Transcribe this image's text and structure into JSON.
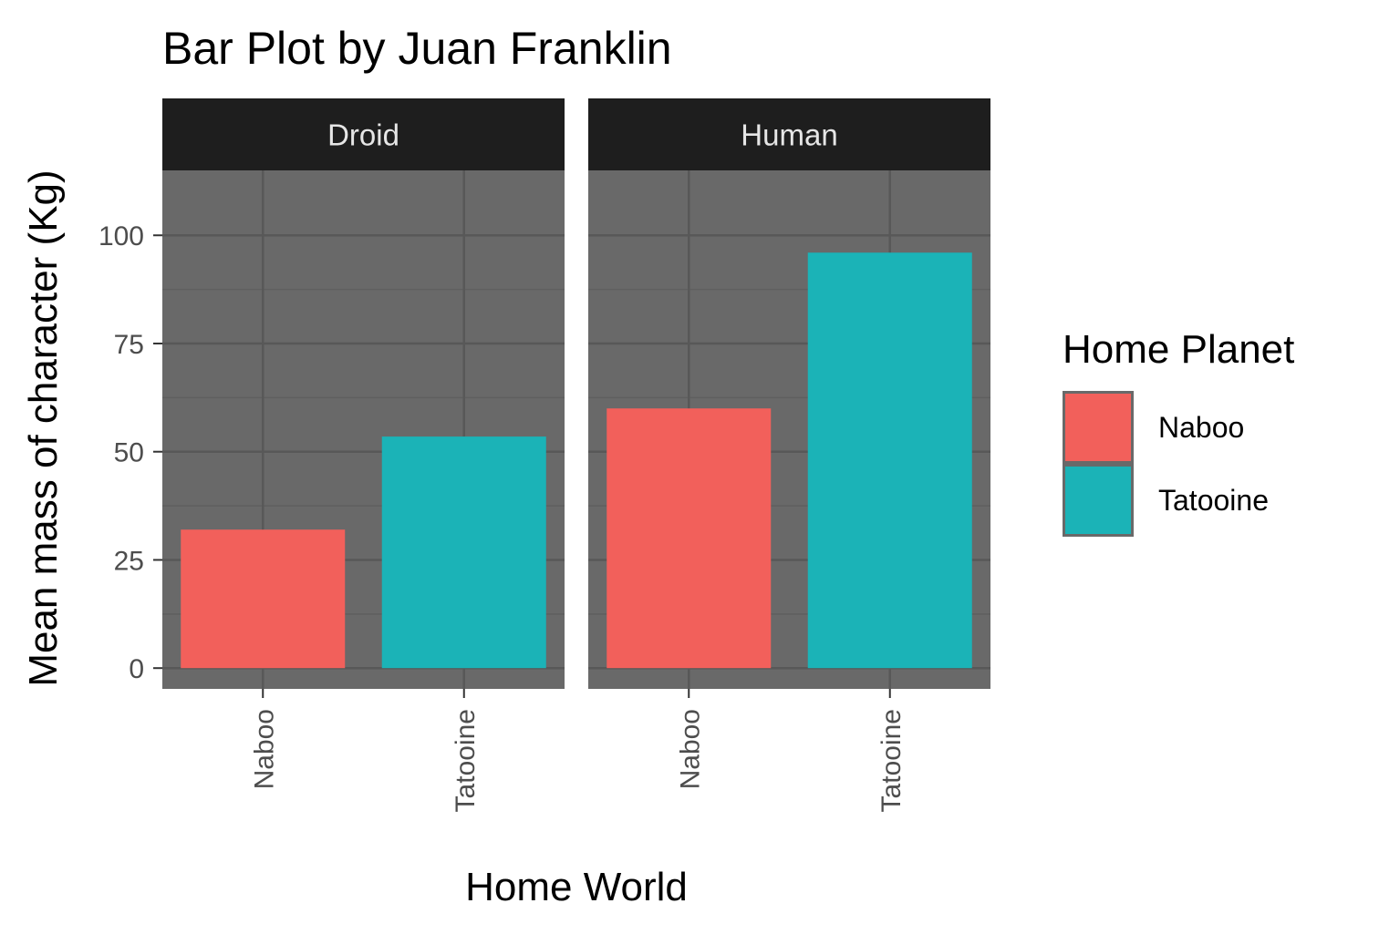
{
  "chart_data": {
    "type": "bar",
    "title": "Bar Plot by Juan Franklin",
    "xlabel": "Home World",
    "ylabel": "Mean mass of character (Kg)",
    "ylim": [
      -4.8,
      115
    ],
    "yticks": [
      0,
      25,
      50,
      75,
      100
    ],
    "grid": true,
    "legend_position": "right",
    "categories": [
      "Naboo",
      "Tatooine"
    ],
    "facets": [
      {
        "label": "Droid",
        "values": [
          32,
          53.5
        ]
      },
      {
        "label": "Human",
        "values": [
          60,
          96
        ]
      }
    ],
    "legend": {
      "title": "Home Planet",
      "entries": [
        {
          "label": "Naboo",
          "color": "#F2605B"
        },
        {
          "label": "Tatooine",
          "color": "#1BB3B7"
        }
      ]
    },
    "colors": {
      "panel_background": "#696969",
      "grid_major": "#585858",
      "grid_minor": "#5f5f5f",
      "strip_background": "#1e1e1e"
    }
  }
}
